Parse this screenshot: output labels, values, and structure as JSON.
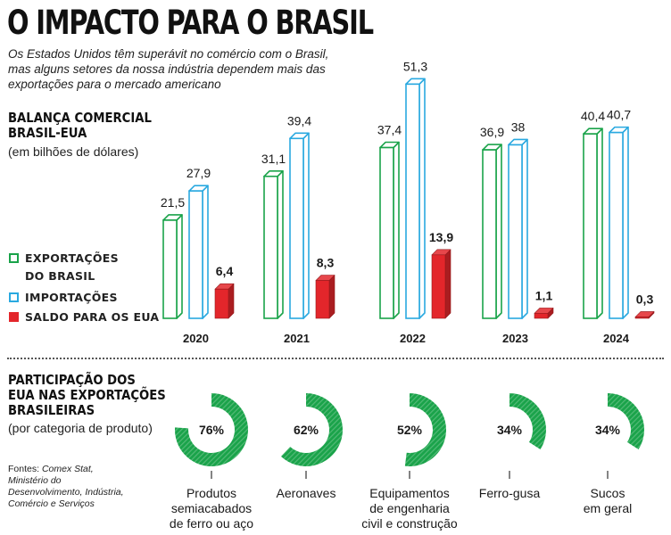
{
  "title": "O IMPACTO PARA O BRASIL",
  "subtitle": "Os Estados Unidos têm superávit no comércio com o Brasil, mas alguns setores da nossa indústria dependem mais das exportações para o mercado americano",
  "trade": {
    "heading": [
      "BALANÇA COMERCIAL",
      "BRASIL-EUA"
    ],
    "subheading": "(em bilhões de dólares)",
    "legend": [
      {
        "label": [
          "EXPORTAÇÕES",
          "DO BRASIL"
        ],
        "color": "#1aa34a",
        "style": "outline"
      },
      {
        "label": [
          "IMPORTAÇÕES"
        ],
        "color": "#2aa9e0",
        "style": "outline"
      },
      {
        "label": [
          "SALDO PARA OS EUA"
        ],
        "color": "#e3262b",
        "style": "filled"
      }
    ]
  },
  "share": {
    "heading": [
      "PARTICIPAÇÃO DOS",
      "EUA NAS EXPORTAÇÕES",
      "BRASILEIRAS"
    ],
    "subheading": "(por categoria de produto)"
  },
  "sources": {
    "prefix": "Fontes: ",
    "list": "Comex Stat, Ministério do Desenvolvimento, Indústria, Comércio e Serviços"
  },
  "colors": {
    "exports": "#1aa34a",
    "imports": "#2aa9e0",
    "balance": "#e3262b",
    "donut": "#1aa34a"
  },
  "chart_data": [
    {
      "type": "bar",
      "title": "BALANÇA COMERCIAL BRASIL-EUA",
      "ylabel": "(em bilhões de dólares)",
      "categories": [
        "2020",
        "2021",
        "2022",
        "2023",
        "2024"
      ],
      "series": [
        {
          "name": "EXPORTAÇÕES DO BRASIL",
          "values": [
            21.5,
            31.1,
            37.4,
            36.9,
            40.4
          ],
          "labels": [
            "21,5",
            "31,1",
            "37,4",
            "36,9",
            "40,4"
          ]
        },
        {
          "name": "IMPORTAÇÕES",
          "values": [
            27.9,
            39.4,
            51.3,
            38,
            40.7
          ],
          "labels": [
            "27,9",
            "39,4",
            "51,3",
            "38",
            "40,7"
          ]
        },
        {
          "name": "SALDO PARA OS EUA",
          "values": [
            6.4,
            8.3,
            13.9,
            1.1,
            0.3
          ],
          "labels": [
            "6,4",
            "8,3",
            "13,9",
            "1,1",
            "0,3"
          ]
        }
      ]
    },
    {
      "type": "pie",
      "title": "PARTICIPAÇÃO DOS EUA NAS EXPORTAÇÕES BRASILEIRAS",
      "subtitle": "(por categoria de produto)",
      "categories": [
        [
          "Produtos",
          "semiacabados",
          "de ferro ou aço"
        ],
        [
          "Aeronaves"
        ],
        [
          "Equipamentos",
          "de engenharia",
          "civil e construção"
        ],
        [
          "Ferro-gusa"
        ],
        [
          "Sucos",
          "em geral"
        ]
      ],
      "values": [
        76,
        62,
        52,
        34,
        34
      ],
      "labels": [
        "76%",
        "62%",
        "52%",
        "34%",
        "34%"
      ]
    }
  ]
}
